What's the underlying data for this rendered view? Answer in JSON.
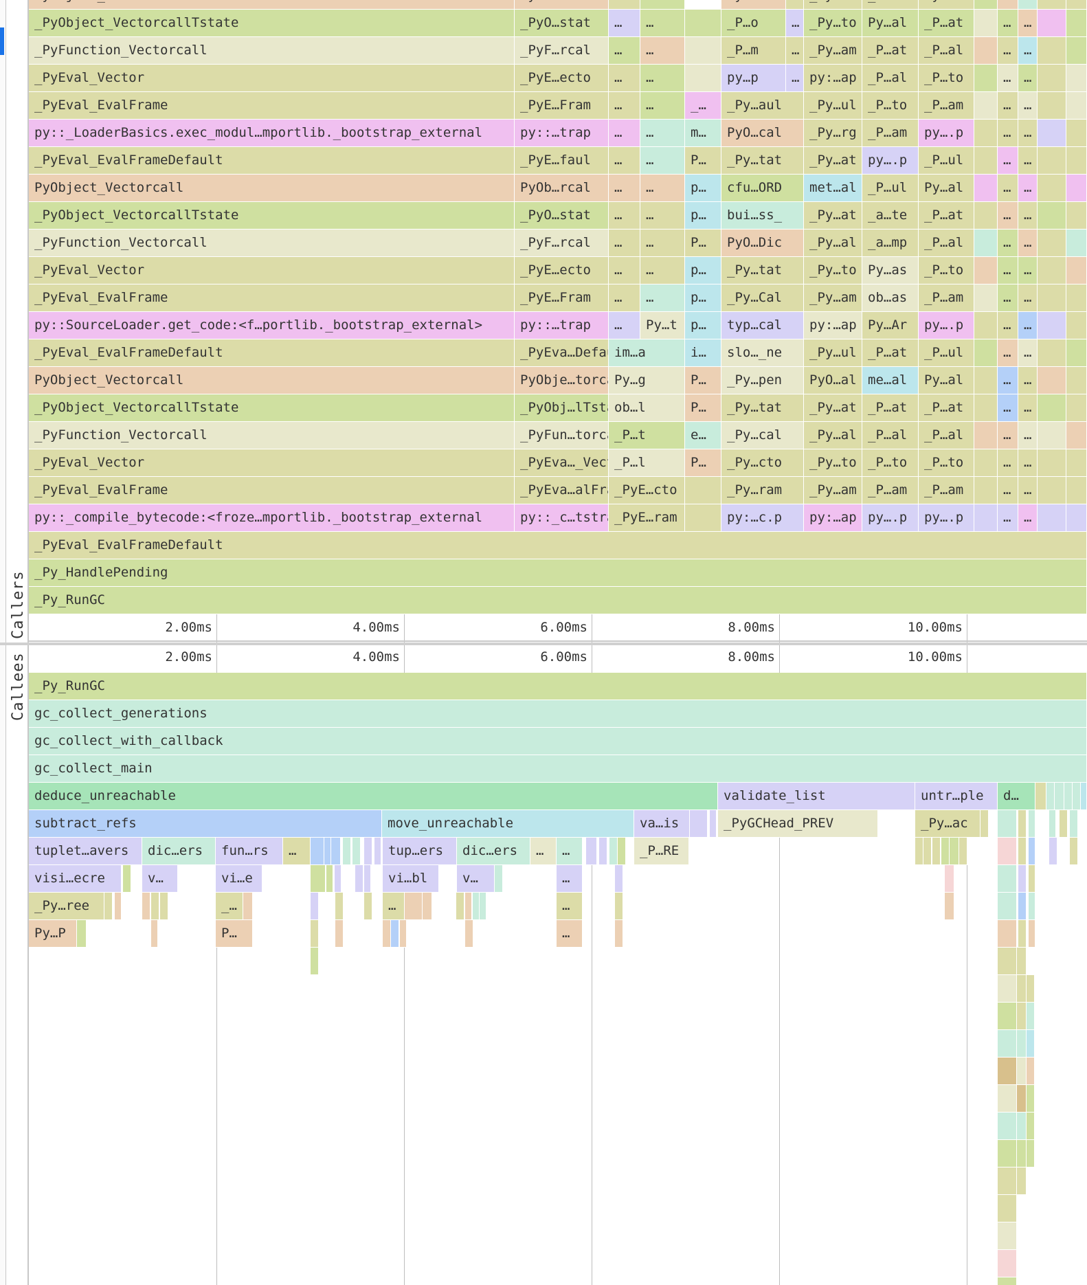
{
  "side_labels": {
    "callers": "Callers",
    "callees": "Callees"
  },
  "time_axis": {
    "labels": [
      "2.00ms",
      "4.00ms",
      "6.00ms",
      "8.00ms",
      "10.00ms"
    ]
  },
  "callers": {
    "bottom_rows": [
      "_PyEval_EvalFrameDefault",
      "_Py_HandlePending",
      "_Py_RunGC"
    ],
    "stack_rows": [
      [
        "_PyObject_VectorcallTstate",
        "_PyO…stat",
        "…",
        "…",
        "",
        "",
        "_P…o",
        "…",
        "_Py…to",
        "Py…al",
        "_P…at",
        "",
        "…",
        "…",
        "",
        ""
      ],
      [
        "_PyFunction_Vectorcall",
        "_PyF…rcal",
        "…",
        "…",
        "",
        "",
        "_P…m",
        "…",
        "_Py…am",
        "_P…at",
        "_P…al",
        "",
        "…",
        "…",
        "",
        ""
      ],
      [
        "_PyEval_Vector",
        "_PyE…ecto",
        "…",
        "…",
        "",
        "",
        "py…p",
        "…",
        "py:…ap",
        "_P…al",
        "_P…to",
        "",
        "…",
        "…",
        "",
        ""
      ],
      [
        "_PyEval_EvalFrame",
        "_PyE…Fram",
        "…",
        "…",
        "",
        "_…",
        "_Py…aul",
        "",
        "_Py…ul",
        "_P…to",
        "_P…am",
        "",
        "…",
        "…",
        "",
        ""
      ],
      [
        "py::_LoaderBasics.exec_modul…mportlib._bootstrap_external",
        "py::…trap",
        "…",
        "…",
        "",
        "m…",
        "PyO…cal",
        "",
        "_Py…rg",
        "_P…am",
        "py….p",
        "",
        "…",
        "…",
        "",
        ""
      ],
      [
        "_PyEval_EvalFrameDefault",
        "_PyE…faul",
        "…",
        "…",
        "",
        "P…",
        "_Py…tat",
        "",
        "_Py…at",
        "py….p",
        "_P…ul",
        "",
        "…",
        "…",
        "",
        ""
      ],
      [
        "PyObject_Vectorcall",
        "PyOb…rcal",
        "…",
        "…",
        "",
        "p…",
        "cfu…ORD",
        "",
        "met…al",
        "_P…ul",
        "Py…al",
        "",
        "…",
        "…",
        "",
        ""
      ],
      [
        "_PyObject_VectorcallTstate",
        "_PyO…stat",
        "…",
        "…",
        "",
        "p…",
        "bui…ss_",
        "",
        "_Py…at",
        "_a…te",
        "_P…at",
        "",
        "…",
        "…",
        "",
        ""
      ],
      [
        "_PyFunction_Vectorcall",
        "_PyF…rcal",
        "…",
        "…",
        "",
        "P…",
        "PyO…Dic",
        "",
        "_Py…al",
        "_a…mp",
        "_P…al",
        "",
        "…",
        "…",
        "",
        ""
      ],
      [
        "_PyEval_Vector",
        "_PyE…ecto",
        "…",
        "…",
        "",
        "p…",
        "_Py…tat",
        "",
        "_Py…to",
        "Py…as",
        "_P…to",
        "",
        "…",
        "…",
        "",
        ""
      ],
      [
        "_PyEval_EvalFrame",
        "_PyE…Fram",
        "…",
        "…",
        "",
        "p…",
        "_Py…Cal",
        "",
        "_Py…am",
        "ob…as",
        "_P…am",
        "",
        "…",
        "…",
        "",
        ""
      ],
      [
        "py::SourceLoader.get_code:<f…portlib._bootstrap_external>",
        "py::…trap",
        "…",
        "Py…t",
        "",
        "p…",
        "typ…cal",
        "",
        "py:…ap",
        "Py…Ar",
        "py….p",
        "",
        "…",
        "…",
        "",
        ""
      ],
      [
        "_PyEval_EvalFrameDefault",
        "_PyEva…Defaul",
        "im…a",
        "",
        "",
        "i…",
        "slo…_ne",
        "",
        "_Py…ul",
        "_P…at",
        "_P…ul",
        "",
        "…",
        "…",
        "",
        ""
      ],
      [
        "PyObject_Vectorcall",
        "PyObje…torcal",
        "Py…g",
        "",
        "",
        "P…",
        "_Py…pen",
        "",
        "PyO…al",
        "me…al",
        "Py…al",
        "",
        "…",
        "…",
        "",
        ""
      ],
      [
        "_PyObject_VectorcallTstate",
        "_PyObj…lTstat",
        "ob…l",
        "",
        "",
        "P…",
        "_Py…tat",
        "",
        "_Py…at",
        "_P…at",
        "_P…at",
        "",
        "…",
        "…",
        "",
        ""
      ],
      [
        "_PyFunction_Vectorcall",
        "_PyFun…torcal",
        "_P…t",
        "",
        "",
        "e…",
        "_Py…cal",
        "",
        "_Py…al",
        "_P…al",
        "_P…al",
        "",
        "…",
        "…",
        "",
        ""
      ],
      [
        "_PyEval_Vector",
        "_PyEva…_Vecto",
        "_P…l",
        "",
        "",
        "P…",
        "_Py…cto",
        "",
        "_Py…to",
        "_P…to",
        "_P…to",
        "",
        "…",
        "…",
        "",
        ""
      ],
      [
        "_PyEval_EvalFrame",
        "_PyEva…alFram",
        "_PyE…cto",
        "",
        "",
        "",
        "_Py…ram",
        "",
        "_Py…am",
        "_P…am",
        "_P…am",
        "",
        "…",
        "…",
        "",
        ""
      ],
      [
        "py::_compile_bytecode:<froze…mportlib._bootstrap_external",
        "py::_c…tstrap",
        "_PyE…ram",
        "",
        "",
        "",
        "py:…c.p",
        "",
        "py:…ap",
        "py….p",
        "py….p",
        "",
        "…",
        "…",
        "",
        ""
      ]
    ],
    "top_row_partial": [
      "PyObject_Vectorcall",
      "PyOb…rcal",
      "…",
      "…",
      "",
      "",
      "Py…d",
      "…",
      "_Py…al",
      "_P…al",
      "Py…al",
      "",
      "…",
      "…",
      "",
      ""
    ]
  },
  "callees": {
    "full_rows": [
      "_Py_RunGC",
      "gc_collect_generations",
      "gc_collect_with_callback",
      "gc_collect_main"
    ],
    "level4": [
      "deduce_unreachable",
      "validate_list",
      "untr…ple",
      "d…"
    ],
    "level5": [
      "subtract_refs",
      "move_unreachable",
      "va…is",
      "_PyGCHead_PREV",
      "_Py…ac"
    ],
    "level6": [
      "tuplet…avers",
      "dic…ers",
      "fun…rs",
      "…",
      "tup…ers",
      "dic…ers",
      "…",
      "…",
      "_P…RE"
    ],
    "level7": [
      "visi…ecre",
      "v…",
      "vi…e",
      "vi…bl",
      "v…",
      "…"
    ],
    "level8": [
      "_Py…ree",
      "_…",
      "…",
      "…"
    ],
    "level9": [
      "Py…P",
      "P…",
      "…"
    ]
  },
  "colors": {
    "olive": "#dcdca8",
    "green": "#cfe0a0",
    "beige": "#e8e8cc",
    "salmon": "#ecd0b4",
    "pink": "#f0c0f0",
    "lavender": "#d6d2f6",
    "teal": "#c8ecdc",
    "blue": "#b4d0f8",
    "cyan": "#bce6ec"
  }
}
